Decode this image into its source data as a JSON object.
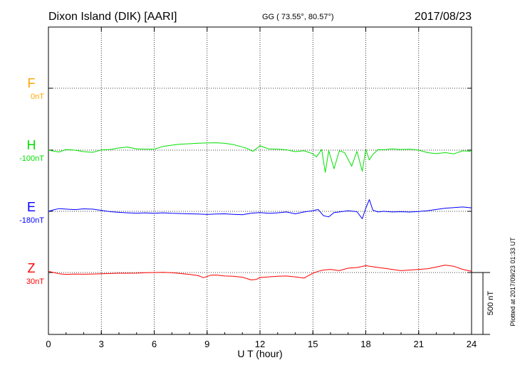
{
  "header": {
    "station": "Dixon Island (DIK)  [AARI]",
    "coords": "GG ( 73.55°,  80.57°)",
    "date": "2017/08/23"
  },
  "footer": {
    "plotted": "Plotted at 2017/09/23 01:33 UT",
    "scale_label": "500 nT"
  },
  "chart_data": {
    "type": "line",
    "xlabel": "U T (hour)",
    "xlim": [
      0,
      24
    ],
    "xticks": [
      0,
      3,
      6,
      9,
      12,
      15,
      18,
      21,
      24
    ],
    "grid": true,
    "scale_bar_nT": 500,
    "series": [
      {
        "name": "F",
        "offset_label": "0nT",
        "color": "#ffa500",
        "x": [],
        "y": []
      },
      {
        "name": "H",
        "offset_label": "-100nT",
        "color": "#00e000",
        "x": [
          0,
          0.3,
          0.6,
          1.0,
          1.5,
          2.0,
          2.5,
          3.0,
          3.5,
          4.0,
          4.5,
          5.0,
          5.5,
          6.0,
          6.5,
          7.0,
          7.5,
          8.0,
          8.5,
          9.0,
          9.5,
          10.0,
          10.5,
          11.0,
          11.3,
          11.6,
          12.0,
          12.5,
          13.0,
          13.5,
          14.0,
          14.5,
          15.0,
          15.2,
          15.5,
          15.7,
          15.9,
          16.2,
          16.5,
          16.8,
          17.2,
          17.5,
          17.8,
          18.0,
          18.2,
          18.4,
          18.7,
          19.0,
          19.5,
          20.0,
          20.5,
          21.0,
          21.5,
          22.0,
          22.5,
          23.0,
          23.5,
          24.0
        ],
        "y": [
          0,
          -8,
          -15,
          5,
          0,
          -12,
          -18,
          2,
          5,
          18,
          24,
          10,
          8,
          8,
          30,
          40,
          48,
          52,
          56,
          58,
          60,
          55,
          45,
          25,
          12,
          -10,
          35,
          10,
          8,
          3,
          -12,
          -5,
          -30,
          -55,
          5,
          -180,
          -5,
          -150,
          -5,
          -20,
          -130,
          -10,
          -170,
          5,
          -80,
          -35,
          5,
          3,
          10,
          5,
          8,
          0,
          -20,
          -28,
          -20,
          -30,
          -5,
          -10
        ]
      },
      {
        "name": "E",
        "offset_label": "-180nT",
        "color": "#0000ff",
        "x": [
          0,
          0.3,
          0.6,
          1.0,
          1.5,
          2.0,
          2.5,
          3.0,
          3.5,
          4.0,
          4.5,
          5.0,
          5.5,
          6.0,
          6.5,
          7.0,
          7.5,
          8.0,
          8.5,
          9.0,
          9.5,
          10.0,
          10.5,
          11.0,
          11.5,
          12.0,
          12.5,
          13.0,
          13.5,
          14.0,
          14.5,
          15.0,
          15.3,
          15.6,
          15.9,
          16.2,
          16.5,
          17.0,
          17.5,
          17.8,
          18.0,
          18.2,
          18.4,
          18.7,
          19.0,
          19.5,
          20.0,
          20.5,
          21.0,
          21.5,
          22.0,
          22.5,
          23.0,
          23.5,
          24.0
        ],
        "y": [
          0,
          12,
          22,
          18,
          14,
          20,
          18,
          8,
          -3,
          -8,
          -12,
          -15,
          -12,
          -16,
          -12,
          -16,
          -18,
          -20,
          -22,
          -25,
          -22,
          -20,
          -24,
          -27,
          -15,
          -10,
          -16,
          -12,
          -5,
          -20,
          -5,
          5,
          15,
          -35,
          -45,
          -10,
          -5,
          5,
          -3,
          -60,
          25,
          95,
          10,
          -5,
          0,
          -5,
          -3,
          -6,
          -2,
          5,
          15,
          25,
          30,
          35,
          28
        ]
      },
      {
        "name": "Z",
        "offset_label": "30nT",
        "color": "#ff0000",
        "x": [
          0,
          0.3,
          0.6,
          1.0,
          1.5,
          2.0,
          2.5,
          3.0,
          3.5,
          4.0,
          4.5,
          5.0,
          5.5,
          6.0,
          6.5,
          7.0,
          7.5,
          8.0,
          8.5,
          8.8,
          9.2,
          9.5,
          10.0,
          10.5,
          11.0,
          11.5,
          11.8,
          12.0,
          12.5,
          13.0,
          13.5,
          14.0,
          14.5,
          15.0,
          15.3,
          15.6,
          16.0,
          16.5,
          17.0,
          17.5,
          18.0,
          18.5,
          19.0,
          19.5,
          20.0,
          20.5,
          21.0,
          21.5,
          22.0,
          22.5,
          23.0,
          23.5,
          24.0
        ],
        "y": [
          10,
          0,
          -10,
          -15,
          -12,
          -14,
          -12,
          -10,
          -8,
          -6,
          -6,
          -5,
          -2,
          0,
          2,
          -2,
          -8,
          -15,
          -25,
          -42,
          -22,
          -20,
          -28,
          -30,
          -38,
          -60,
          -55,
          -40,
          -35,
          -30,
          -28,
          -35,
          -45,
          -5,
          10,
          20,
          25,
          15,
          35,
          40,
          55,
          45,
          35,
          25,
          15,
          20,
          25,
          30,
          45,
          60,
          50,
          25,
          10
        ]
      }
    ]
  }
}
